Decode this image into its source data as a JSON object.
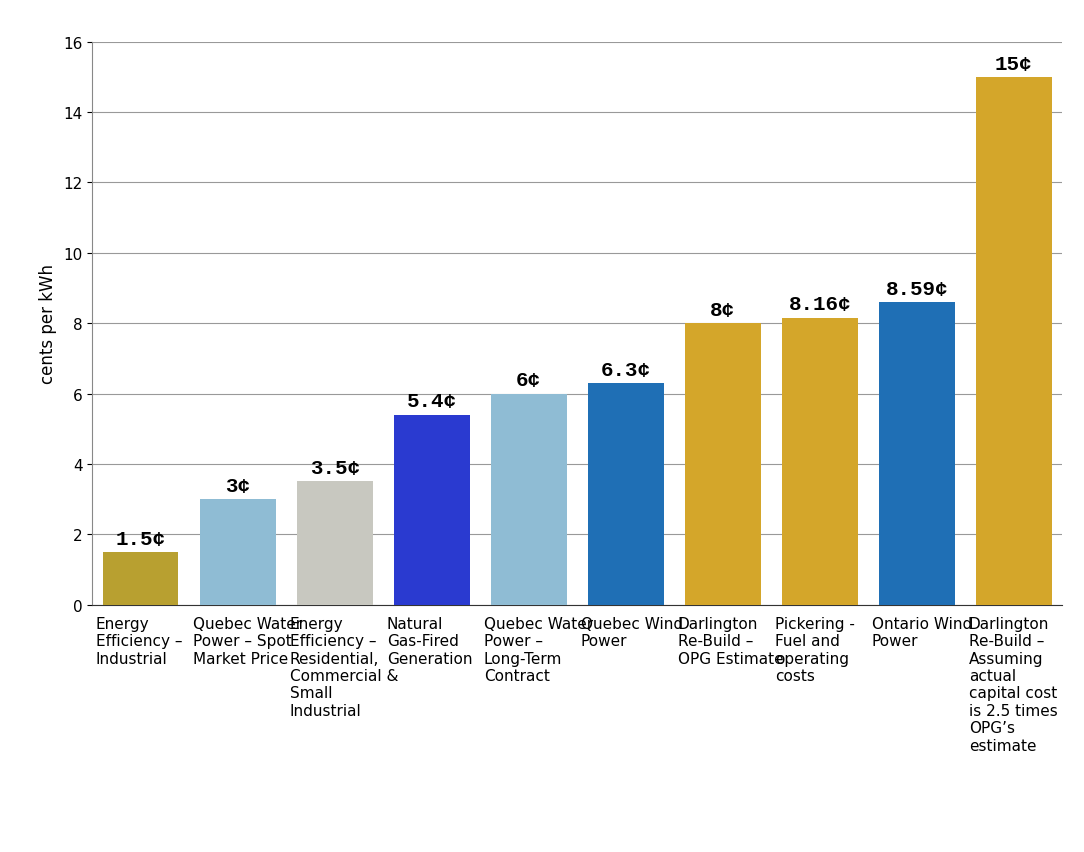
{
  "chart_data": {
    "type": "bar",
    "y_label": "cents per kWh",
    "categories": [
      "Energy Efficiency – Industrial",
      "Quebec Water Power – Spot Market Price",
      "Energy Efficiency – Residential, Commercial & Small Industrial",
      "Natural Gas-Fired Generation",
      "Quebec Water Power – Long-Term Contract",
      "Quebec Wind Power",
      "Darlington Re-Build – OPG Estimate",
      "Pickering - Fuel and operating costs",
      "Ontario Wind Power",
      "Darlington Re-Build – Assuming actual capital cost is 2.5 times OPG’s estimate"
    ],
    "values": [
      1.5,
      3,
      3.5,
      5.4,
      6,
      6.3,
      8,
      8.16,
      8.59,
      15
    ],
    "value_labels": [
      "1.5¢",
      "3¢",
      "3.5¢",
      "5.4¢",
      "6¢",
      "6.3¢",
      "8¢",
      "8.16¢",
      "8.59¢",
      "15¢"
    ],
    "data_labels": true,
    "colors": [
      "#b8a030",
      "#8fbcd4",
      "#c8c8c0",
      "#2a3ad0",
      "#8fbcd4",
      "#1f6fb5",
      "#d4a62a",
      "#d4a62a",
      "#1f6fb5",
      "#d4a62a"
    ],
    "ylim": [
      0,
      16
    ],
    "yticks": [
      0,
      2,
      4,
      6,
      8,
      10,
      12,
      14,
      16
    ],
    "grid": true
  }
}
